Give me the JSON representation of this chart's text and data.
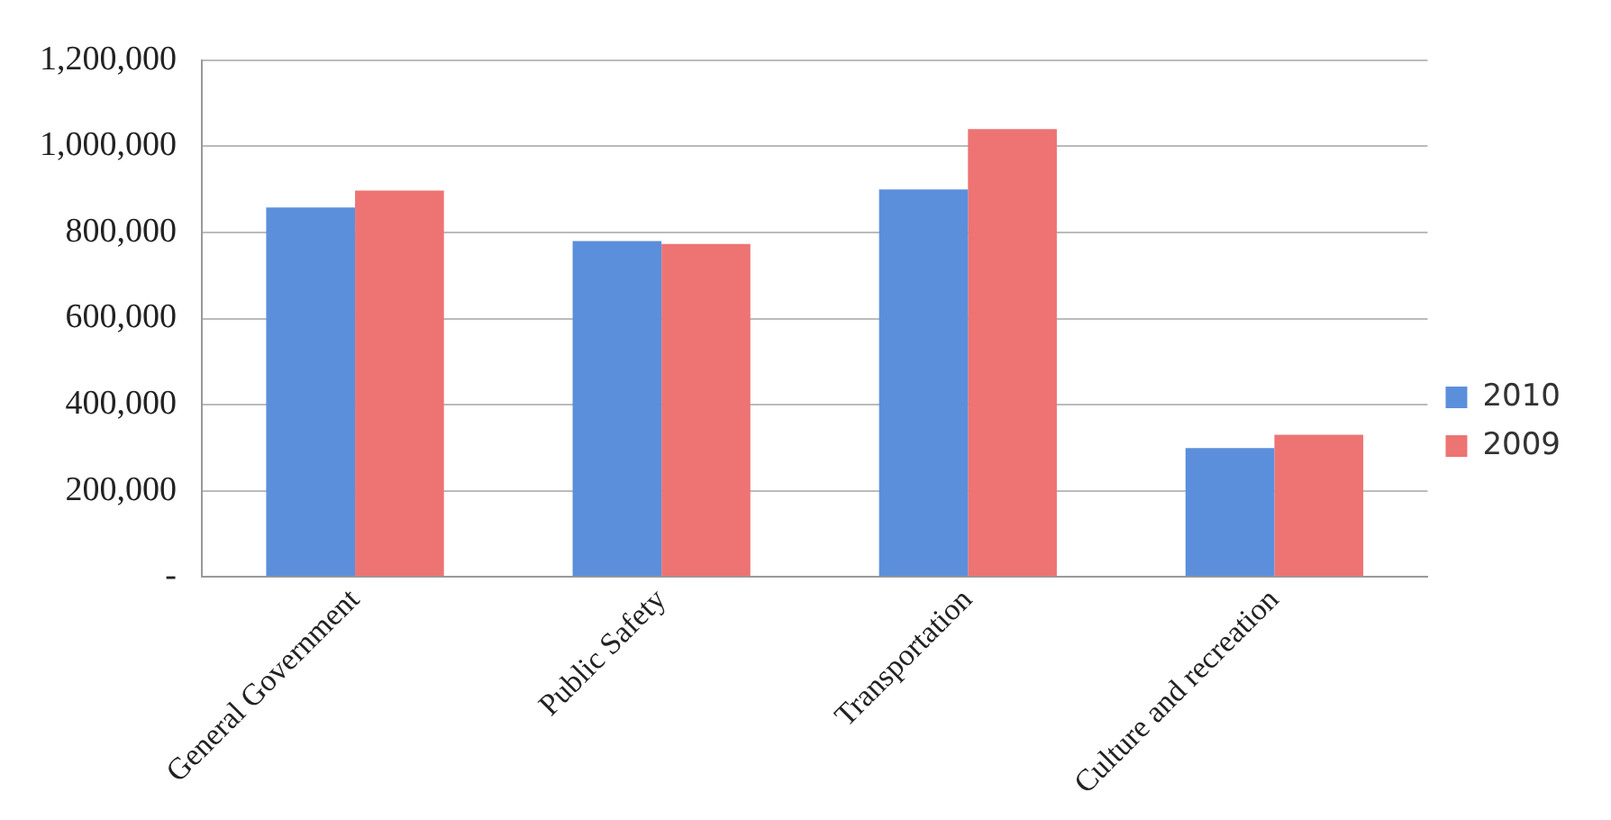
{
  "chart_data": {
    "type": "bar",
    "categories": [
      "General Government",
      "Public Safety",
      "Transportation",
      "Culture and recreation"
    ],
    "series": [
      {
        "name": "2010",
        "color": "#5b8fdb",
        "values": [
          858000,
          780000,
          900000,
          299000
        ]
      },
      {
        "name": "2009",
        "color": "#ee7373",
        "values": [
          897000,
          773000,
          1040000,
          330000
        ]
      }
    ],
    "ylim": [
      0,
      1200000
    ],
    "yticks": [
      {
        "value": 0,
        "label": "-"
      },
      {
        "value": 200000,
        "label": "200,000"
      },
      {
        "value": 400000,
        "label": "400,000"
      },
      {
        "value": 600000,
        "label": "600,000"
      },
      {
        "value": 800000,
        "label": "800,000"
      },
      {
        "value": 1000000,
        "label": "1,000,000"
      },
      {
        "value": 1200000,
        "label": "1,200,000"
      }
    ],
    "grid": "y",
    "legend": "right"
  }
}
